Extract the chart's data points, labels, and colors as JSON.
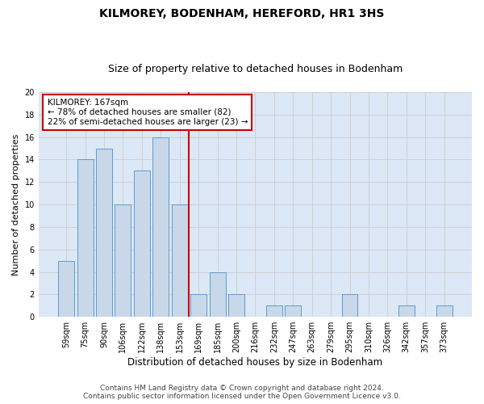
{
  "title": "KILMOREY, BODENHAM, HEREFORD, HR1 3HS",
  "subtitle": "Size of property relative to detached houses in Bodenham",
  "xlabel": "Distribution of detached houses by size in Bodenham",
  "ylabel": "Number of detached properties",
  "categories": [
    "59sqm",
    "75sqm",
    "90sqm",
    "106sqm",
    "122sqm",
    "138sqm",
    "153sqm",
    "169sqm",
    "185sqm",
    "200sqm",
    "216sqm",
    "232sqm",
    "247sqm",
    "263sqm",
    "279sqm",
    "295sqm",
    "310sqm",
    "326sqm",
    "342sqm",
    "357sqm",
    "373sqm"
  ],
  "values": [
    5,
    14,
    15,
    10,
    13,
    16,
    10,
    2,
    4,
    2,
    0,
    1,
    1,
    0,
    0,
    2,
    0,
    0,
    1,
    0,
    1
  ],
  "bar_color": "#c8d8e8",
  "bar_edge_color": "#5b9bd5",
  "vline_color": "#cc0000",
  "annotation_text": "KILMOREY: 167sqm\n← 78% of detached houses are smaller (82)\n22% of semi-detached houses are larger (23) →",
  "annotation_box_color": "#ffffff",
  "annotation_box_edge": "#cc0000",
  "ylim": [
    0,
    20
  ],
  "yticks": [
    0,
    2,
    4,
    6,
    8,
    10,
    12,
    14,
    16,
    18,
    20
  ],
  "grid_color": "#cccccc",
  "bg_color": "#dce8f5",
  "footer_line1": "Contains HM Land Registry data © Crown copyright and database right 2024.",
  "footer_line2": "Contains public sector information licensed under the Open Government Licence v3.0.",
  "title_fontsize": 10,
  "subtitle_fontsize": 9,
  "xlabel_fontsize": 8.5,
  "ylabel_fontsize": 8,
  "tick_fontsize": 7,
  "footer_fontsize": 6.5
}
